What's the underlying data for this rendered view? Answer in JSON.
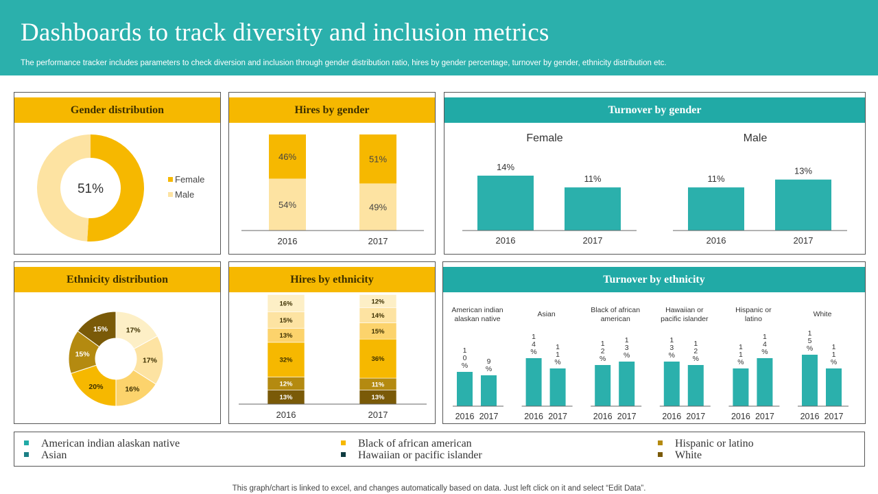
{
  "header": {
    "title": "Dashboards to track diversity and inclusion metrics",
    "subtitle": "The performance tracker includes parameters to check diversion and inclusion through gender distribution ratio, hires by gender percentage, turnover by gender, ethnicity distribution etc."
  },
  "footer": "This graph/chart is linked to excel, and changes automatically based on data. Just left click on it and select “Edit Data”.",
  "colors": {
    "teal": "#2bb0ac",
    "female": "#f6b800",
    "male": "#fde3a2",
    "eth_american_indian": "#21aaa6",
    "eth_asian": "#1b7f85",
    "eth_black": "#f6b800",
    "eth_hawaiian": "#0e3b40",
    "eth_hispanic": "#b48a10",
    "eth_white": "#7a5a08"
  },
  "chart_data": [
    {
      "id": "gender_distribution",
      "type": "pie",
      "title": "Gender distribution",
      "center_label": "51%",
      "labels": [
        "Female",
        "Male"
      ],
      "values": [
        51,
        49
      ]
    },
    {
      "id": "hires_by_gender",
      "type": "bar",
      "stacked": true,
      "title": "Hires by gender",
      "categories": [
        "2016",
        "2017"
      ],
      "series": [
        {
          "name": "Male",
          "values": [
            54,
            49
          ],
          "labels": [
            "54%",
            "49%"
          ]
        },
        {
          "name": "Female",
          "values": [
            46,
            51
          ],
          "labels": [
            "46%",
            "51%"
          ]
        }
      ]
    },
    {
      "id": "turnover_by_gender",
      "type": "bar",
      "title": "Turnover by gender",
      "groups": [
        {
          "name": "Female",
          "categories": [
            "2016",
            "2017"
          ],
          "values": [
            14,
            11
          ],
          "labels": [
            "14%",
            "11%"
          ]
        },
        {
          "name": "Male",
          "categories": [
            "2016",
            "2017"
          ],
          "values": [
            11,
            13
          ],
          "labels": [
            "11%",
            "13%"
          ]
        }
      ]
    },
    {
      "id": "ethnicity_distribution",
      "type": "pie",
      "title": "Ethnicity distribution",
      "values": [
        17,
        17,
        16,
        20,
        15,
        15
      ],
      "labels": [
        "17%",
        "17%",
        "16%",
        "20%",
        "15%",
        "15%"
      ],
      "colors": [
        "#fdefc6",
        "#fde3a2",
        "#fcd36c",
        "#f6b800",
        "#b48a10",
        "#7a5a08"
      ]
    },
    {
      "id": "hires_by_ethnicity",
      "type": "bar",
      "stacked": true,
      "title": "Hires by ethnicity",
      "categories": [
        "2016",
        "2017"
      ],
      "series": [
        {
          "name": "White",
          "values": [
            13,
            13
          ],
          "labels": [
            "13%",
            "13%"
          ],
          "color": "#7a5a08",
          "text": "#ffffff"
        },
        {
          "name": "Hispanic or latino",
          "values": [
            12,
            11
          ],
          "labels": [
            "12%",
            "11%"
          ],
          "color": "#b48a10",
          "text": "#ffffff"
        },
        {
          "name": "Black of african american",
          "values": [
            32,
            36
          ],
          "labels": [
            "32%",
            "36%"
          ],
          "color": "#f6b800",
          "text": "#3d3000"
        },
        {
          "name": "Hawaiian or pacific islander",
          "values": [
            13,
            15
          ],
          "labels": [
            "13%",
            "15%"
          ],
          "color": "#fcd36c",
          "text": "#3d3000"
        },
        {
          "name": "Asian",
          "values": [
            15,
            14
          ],
          "labels": [
            "15%",
            "14%"
          ],
          "color": "#fde3a2",
          "text": "#3d3000"
        },
        {
          "name": "American indian alaskan native",
          "values": [
            16,
            12
          ],
          "labels": [
            "16%",
            "12%"
          ],
          "color": "#fdefc6",
          "text": "#3d3000"
        }
      ]
    },
    {
      "id": "turnover_by_ethnicity",
      "type": "bar",
      "title": "Turnover by ethnicity",
      "groups": [
        {
          "name_lines": [
            "American indian",
            "alaskan native"
          ],
          "categories": [
            "2016",
            "2017"
          ],
          "values": [
            10,
            9
          ],
          "labels": [
            "10%",
            "9%"
          ]
        },
        {
          "name_lines": [
            "Asian"
          ],
          "categories": [
            "2016",
            "2017"
          ],
          "values": [
            14,
            11
          ],
          "labels": [
            "14%",
            "11%"
          ]
        },
        {
          "name_lines": [
            "Black of african",
            "american"
          ],
          "categories": [
            "2016",
            "2017"
          ],
          "values": [
            12,
            13
          ],
          "labels": [
            "12%",
            "13%"
          ]
        },
        {
          "name_lines": [
            "Hawaiian or",
            "pacific islander"
          ],
          "categories": [
            "2016",
            "2017"
          ],
          "values": [
            13,
            12
          ],
          "labels": [
            "13%",
            "12%"
          ]
        },
        {
          "name_lines": [
            "Hispanic or",
            "latino"
          ],
          "categories": [
            "2016",
            "2017"
          ],
          "values": [
            11,
            14
          ],
          "labels": [
            "11%",
            "14%"
          ]
        },
        {
          "name_lines": [
            "White"
          ],
          "categories": [
            "2016",
            "2017"
          ],
          "values": [
            15,
            11
          ],
          "labels": [
            "15%",
            "11%"
          ]
        }
      ]
    }
  ],
  "legend": {
    "items": [
      {
        "label": "American indian alaskan native",
        "color": "#21aaa6"
      },
      {
        "label": "Asian",
        "color": "#1b7f85"
      },
      {
        "label": "Black of african american",
        "color": "#f6b800"
      },
      {
        "label": "Hawaiian or pacific islander",
        "color": "#0e3b40"
      },
      {
        "label": "Hispanic or latino",
        "color": "#b48a10"
      },
      {
        "label": "White",
        "color": "#7a5a08"
      }
    ]
  }
}
